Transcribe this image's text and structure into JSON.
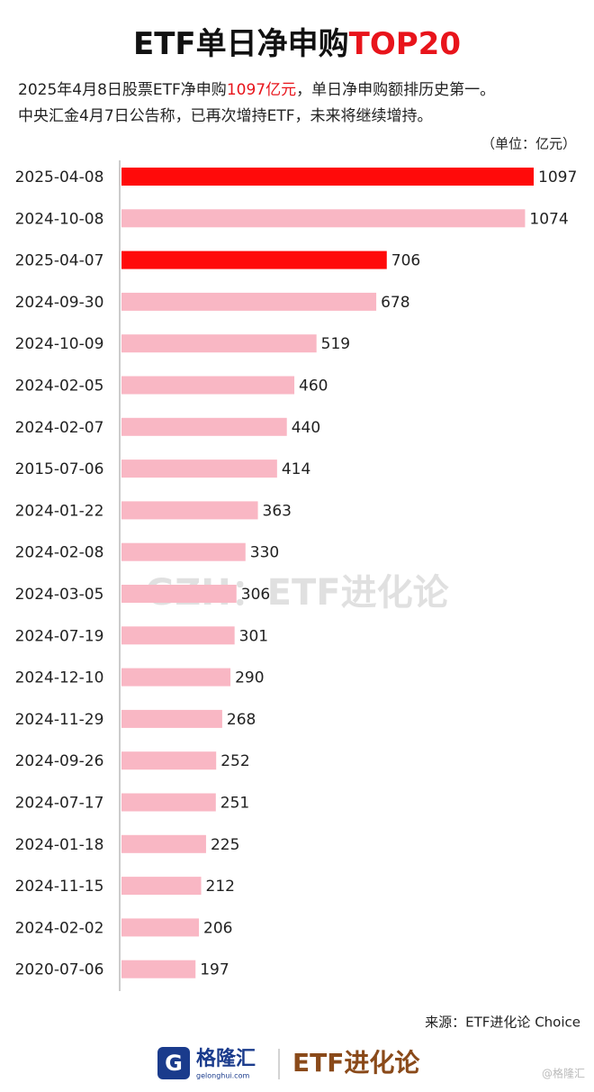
{
  "chart_data": {
    "type": "bar",
    "orientation": "horizontal",
    "title_parts": [
      "ETF单日净申购",
      "TOP20"
    ],
    "subtitle_line1_parts": [
      "2025年4月8日股票ETF净申购",
      "1097亿元",
      "，单日净申购额排历史第一。"
    ],
    "subtitle_line2": "中央汇金4月7日公告称，已再次增持ETF，未来将继续增持。",
    "unit_label": "（单位：亿元）",
    "highlight_color": "#e8141b",
    "categories": [
      "2025-04-08",
      "2024-10-08",
      "2025-04-07",
      "2024-09-30",
      "2024-10-09",
      "2024-02-05",
      "2024-02-07",
      "2015-07-06",
      "2024-01-22",
      "2024-02-08",
      "2024-03-05",
      "2024-07-19",
      "2024-12-10",
      "2024-11-29",
      "2024-09-26",
      "2024-07-17",
      "2024-01-18",
      "2024-11-15",
      "2024-02-02",
      "2020-07-06"
    ],
    "values": [
      1097,
      1074,
      706,
      678,
      519,
      460,
      440,
      414,
      363,
      330,
      306,
      301,
      290,
      268,
      252,
      251,
      225,
      212,
      206,
      197
    ],
    "colors": [
      "#ff0a0a",
      "#f9b7c4",
      "#ff0a0a",
      "#f9b7c4",
      "#f9b7c4",
      "#f9b7c4",
      "#f9b7c4",
      "#f9b7c4",
      "#f9b7c4",
      "#f9b7c4",
      "#f9b7c4",
      "#f9b7c4",
      "#f9b7c4",
      "#f9b7c4",
      "#f9b7c4",
      "#f9b7c4",
      "#f9b7c4",
      "#f9b7c4",
      "#f9b7c4",
      "#f9b7c4"
    ],
    "watermark": "GZH：ETF进化论",
    "source": "来源：ETF进化论 Choice",
    "footer": {
      "logo_name": "格隆汇",
      "logo_url": "gelonghui.com",
      "brand": "ETF进化论",
      "corner": "@格隆汇"
    }
  }
}
